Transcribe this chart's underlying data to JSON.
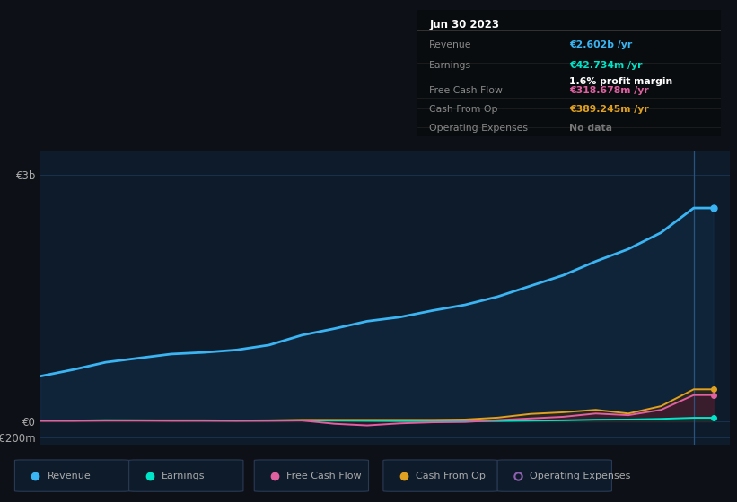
{
  "bg_color": "#0d1117",
  "plot_bg_color": "#0d1b2a",
  "grid_color": "#1e3a5f",
  "text_color": "#aaaaaa",
  "title_color": "#ffffff",
  "years": [
    2013.0,
    2013.5,
    2014.0,
    2014.5,
    2015.0,
    2015.5,
    2016.0,
    2016.5,
    2017.0,
    2017.5,
    2018.0,
    2018.5,
    2019.0,
    2019.5,
    2020.0,
    2020.5,
    2021.0,
    2021.5,
    2022.0,
    2022.5,
    2023.0,
    2023.3
  ],
  "revenue": [
    0.55,
    0.63,
    0.72,
    0.77,
    0.82,
    0.84,
    0.87,
    0.93,
    1.05,
    1.13,
    1.22,
    1.27,
    1.35,
    1.42,
    1.52,
    1.65,
    1.78,
    1.95,
    2.1,
    2.3,
    2.6,
    2.6
  ],
  "earnings": [
    0.01,
    0.01,
    0.013,
    0.012,
    0.01,
    0.009,
    0.008,
    0.009,
    0.01,
    0.008,
    0.005,
    0.003,
    0.002,
    0.001,
    0.003,
    0.008,
    0.012,
    0.02,
    0.022,
    0.03,
    0.043,
    0.043
  ],
  "free_cash_flow": [
    0.005,
    0.005,
    0.008,
    0.008,
    0.006,
    0.007,
    0.006,
    0.007,
    0.01,
    -0.03,
    -0.05,
    -0.025,
    -0.012,
    -0.008,
    0.015,
    0.035,
    0.055,
    0.095,
    0.075,
    0.14,
    0.32,
    0.32
  ],
  "cash_from_op": [
    0.01,
    0.01,
    0.012,
    0.012,
    0.012,
    0.012,
    0.01,
    0.012,
    0.018,
    0.018,
    0.018,
    0.018,
    0.018,
    0.022,
    0.045,
    0.09,
    0.11,
    0.14,
    0.095,
    0.185,
    0.39,
    0.39
  ],
  "revenue_color": "#3ab4f2",
  "earnings_color": "#00e5c8",
  "free_cash_flow_color": "#e060a0",
  "cash_from_op_color": "#e0a020",
  "op_expenses_color": "#9060b0",
  "fill_revenue_alpha": 0.3,
  "fill_other_alpha": 0.55,
  "ytick_vals": [
    -0.2,
    0.0,
    3.0
  ],
  "ytick_labels": [
    "-€200m",
    "€0",
    "€3b"
  ],
  "ylim": [
    -0.28,
    3.3
  ],
  "xlim": [
    2013.0,
    2023.55
  ],
  "xticks": [
    2014,
    2015,
    2016,
    2017,
    2018,
    2019,
    2020,
    2021,
    2022,
    2023
  ],
  "tooltip_title": "Jun 30 2023",
  "tooltip_rows": [
    {
      "label": "Revenue",
      "value": "€2.602b /yr",
      "value_color": "#3ab4f2",
      "extra": null
    },
    {
      "label": "Earnings",
      "value": "€42.734m /yr",
      "value_color": "#00e5c8",
      "extra": "1.6% profit margin"
    },
    {
      "label": "Free Cash Flow",
      "value": "€318.678m /yr",
      "value_color": "#e060a0",
      "extra": null
    },
    {
      "label": "Cash From Op",
      "value": "€389.245m /yr",
      "value_color": "#e0a020",
      "extra": null
    },
    {
      "label": "Operating Expenses",
      "value": "No data",
      "value_color": "#777777",
      "extra": null
    }
  ],
  "legend_items": [
    {
      "label": "Revenue",
      "color": "#3ab4f2",
      "hollow": false
    },
    {
      "label": "Earnings",
      "color": "#00e5c8",
      "hollow": false
    },
    {
      "label": "Free Cash Flow",
      "color": "#e060a0",
      "hollow": false
    },
    {
      "label": "Cash From Op",
      "color": "#e0a020",
      "hollow": false
    },
    {
      "label": "Operating Expenses",
      "color": "#9060b0",
      "hollow": true
    }
  ],
  "vline_x": 2023.0,
  "vline_color": "#2a5a8a"
}
